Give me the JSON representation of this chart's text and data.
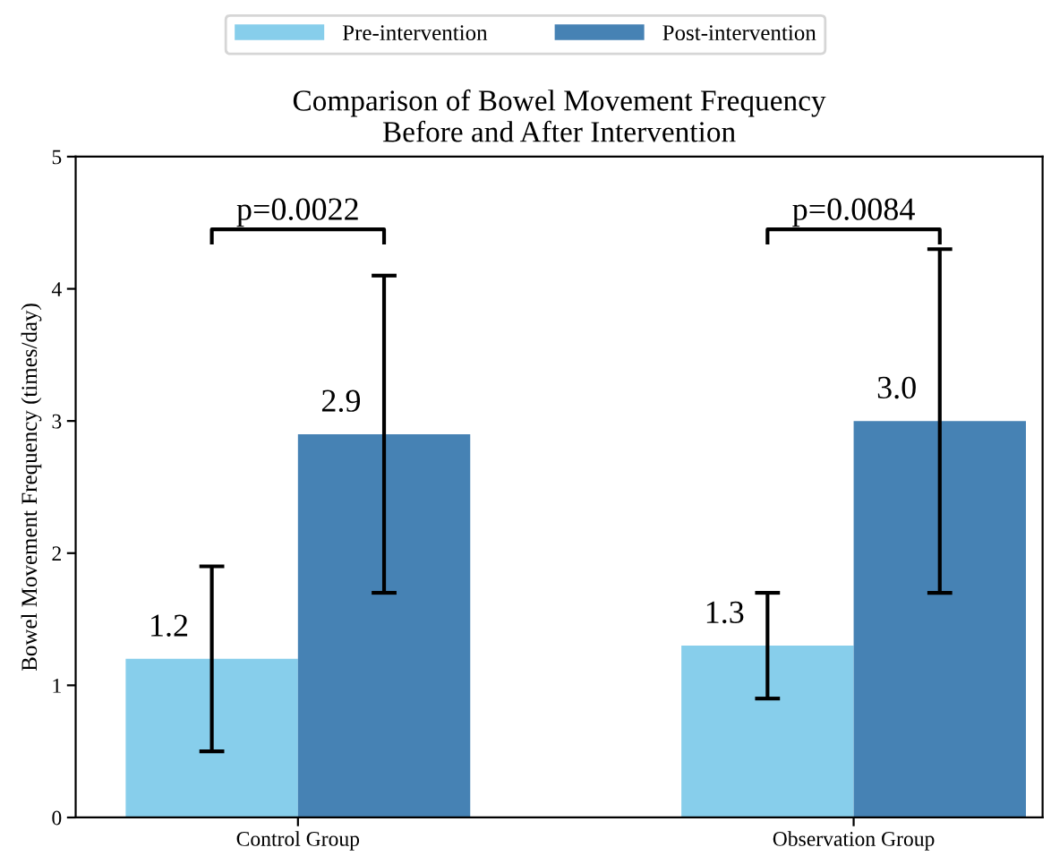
{
  "chart_data": {
    "type": "bar",
    "title": "Comparison of Bowel Movement Frequency\nBefore and After Intervention",
    "ylabel": "Bowel Movement Frequency (times/day)",
    "categories": [
      "Control Group",
      "Observation Group"
    ],
    "series": [
      {
        "name": "Pre-intervention",
        "color": "#87ceeb",
        "values": [
          1.2,
          1.3
        ],
        "errors": [
          0.7,
          0.4
        ],
        "value_labels": [
          "1.2",
          "1.3"
        ]
      },
      {
        "name": "Post-intervention",
        "color": "#4682b4",
        "values": [
          2.9,
          3.0
        ],
        "errors": [
          1.2,
          1.3
        ],
        "value_labels": [
          "2.9",
          "3.0"
        ]
      }
    ],
    "ylim": [
      0,
      5
    ],
    "yticks": [
      0,
      1,
      2,
      3,
      4,
      5
    ],
    "legend": "top",
    "grid": false,
    "annotations": [
      "p=0.0022",
      "p=0.0084"
    ]
  }
}
